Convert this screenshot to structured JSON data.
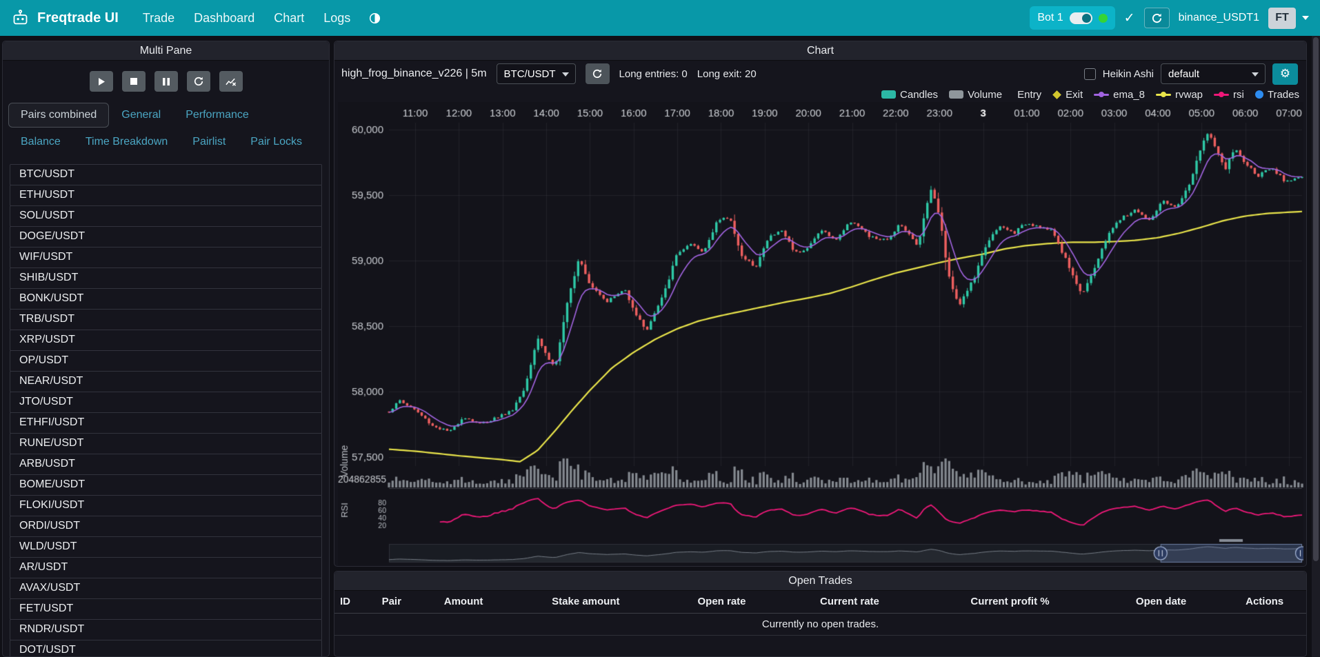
{
  "navbar": {
    "brand": "Freqtrade UI",
    "links": [
      "Trade",
      "Dashboard",
      "Chart",
      "Logs"
    ],
    "bot": {
      "name": "Bot 1",
      "online": true
    },
    "exchange_label": "binance_USDT1",
    "avatar_label": "FT"
  },
  "multi_pane": {
    "title": "Multi Pane",
    "tabs": [
      "Pairs combined",
      "General",
      "Performance",
      "Balance",
      "Time Breakdown",
      "Pairlist",
      "Pair Locks"
    ],
    "active_tab": "Pairs combined",
    "pairs": [
      "BTC/USDT",
      "ETH/USDT",
      "SOL/USDT",
      "DOGE/USDT",
      "WIF/USDT",
      "SHIB/USDT",
      "BONK/USDT",
      "TRB/USDT",
      "XRP/USDT",
      "OP/USDT",
      "NEAR/USDT",
      "JTO/USDT",
      "ETHFI/USDT",
      "RUNE/USDT",
      "ARB/USDT",
      "BOME/USDT",
      "FLOKI/USDT",
      "ORDI/USDT",
      "WLD/USDT",
      "AR/USDT",
      "AVAX/USDT",
      "FET/USDT",
      "RNDR/USDT",
      "DOT/USDT"
    ]
  },
  "chart_panel": {
    "title": "Chart",
    "strategy_label": "high_frog_binance_v226 | 5m",
    "pair_select": "BTC/USDT",
    "long_entries_label": "Long entries: 0",
    "long_exit_label": "Long exit: 20",
    "heikin_ashi_label": "Heikin Ashi",
    "plot_config_select": "default",
    "legend": [
      {
        "label": "Candles",
        "marker": "rect",
        "color": "#2cb8a5"
      },
      {
        "label": "Volume",
        "marker": "rect",
        "color": "#8f969b"
      },
      {
        "label": "Entry",
        "marker": "triangle",
        "color": "#18d06b"
      },
      {
        "label": "Exit",
        "marker": "diamond",
        "color": "#d2c62e"
      },
      {
        "label": "ema_8",
        "marker": "line",
        "color": "#a163e0"
      },
      {
        "label": "rvwap",
        "marker": "line",
        "color": "#e9e44a"
      },
      {
        "label": "rsi",
        "marker": "line",
        "color": "#ee1778"
      },
      {
        "label": "Trades",
        "marker": "circle",
        "color": "#2d8cf0"
      }
    ]
  },
  "chart_data": {
    "type": "candlestick",
    "pair": "BTC/USDT",
    "timeframe": "5m",
    "x_labels": [
      "11:00",
      "12:00",
      "13:00",
      "14:00",
      "15:00",
      "16:00",
      "17:00",
      "18:00",
      "19:00",
      "20:00",
      "21:00",
      "22:00",
      "23:00",
      "3",
      "01:00",
      "02:00",
      "03:00",
      "04:00",
      "05:00",
      "06:00",
      "07:00"
    ],
    "bold_label": "3",
    "y_ticks": [
      57500,
      58000,
      58500,
      59000,
      59500,
      60000
    ],
    "y_range": [
      57430,
      60060
    ],
    "volume_label": "Volume",
    "volume_axis_label": "204862855",
    "rsi_label": "RSI",
    "rsi_ticks": [
      80,
      60,
      40,
      20
    ],
    "close_anchors": [
      [
        -0.6,
        57850
      ],
      [
        -0.35,
        57930
      ],
      [
        0,
        57860
      ],
      [
        0.4,
        57740
      ],
      [
        0.8,
        57690
      ],
      [
        1.1,
        57810
      ],
      [
        1.5,
        57750
      ],
      [
        1.9,
        57810
      ],
      [
        2.2,
        57850
      ],
      [
        2.5,
        58020
      ],
      [
        2.8,
        58420
      ],
      [
        3.0,
        58280
      ],
      [
        3.2,
        58180
      ],
      [
        3.5,
        58700
      ],
      [
        3.75,
        59030
      ],
      [
        4.0,
        58820
      ],
      [
        4.4,
        58690
      ],
      [
        4.8,
        58780
      ],
      [
        5.1,
        58560
      ],
      [
        5.3,
        58470
      ],
      [
        5.7,
        58750
      ],
      [
        6.0,
        59060
      ],
      [
        6.3,
        59120
      ],
      [
        6.6,
        59060
      ],
      [
        6.9,
        59300
      ],
      [
        7.2,
        59330
      ],
      [
        7.5,
        59010
      ],
      [
        7.8,
        58960
      ],
      [
        8.1,
        59180
      ],
      [
        8.4,
        59230
      ],
      [
        8.7,
        59060
      ],
      [
        9.0,
        59100
      ],
      [
        9.3,
        59240
      ],
      [
        9.6,
        59150
      ],
      [
        10.0,
        59310
      ],
      [
        10.4,
        59180
      ],
      [
        10.8,
        59150
      ],
      [
        11.1,
        59290
      ],
      [
        11.5,
        59110
      ],
      [
        11.8,
        59560
      ],
      [
        12.0,
        59350
      ],
      [
        12.2,
        58890
      ],
      [
        12.45,
        58660
      ],
      [
        12.8,
        58870
      ],
      [
        13.1,
        59150
      ],
      [
        13.4,
        59260
      ],
      [
        13.7,
        59210
      ],
      [
        14.0,
        59290
      ],
      [
        14.3,
        59260
      ],
      [
        14.6,
        59220
      ],
      [
        15.0,
        58930
      ],
      [
        15.25,
        58740
      ],
      [
        15.6,
        58980
      ],
      [
        15.9,
        59230
      ],
      [
        16.2,
        59330
      ],
      [
        16.5,
        59390
      ],
      [
        16.8,
        59300
      ],
      [
        17.1,
        59450
      ],
      [
        17.4,
        59400
      ],
      [
        17.7,
        59560
      ],
      [
        18.0,
        59870
      ],
      [
        18.15,
        59990
      ],
      [
        18.35,
        59830
      ],
      [
        18.55,
        59700
      ],
      [
        18.75,
        59860
      ],
      [
        19.0,
        59740
      ],
      [
        19.3,
        59650
      ],
      [
        19.6,
        59700
      ],
      [
        19.9,
        59610
      ],
      [
        20.3,
        59640
      ]
    ],
    "rvwap_anchors": [
      [
        -0.6,
        57560
      ],
      [
        0,
        57545
      ],
      [
        1,
        57510
      ],
      [
        2,
        57480
      ],
      [
        2.4,
        57465
      ],
      [
        2.8,
        57550
      ],
      [
        3.2,
        57700
      ],
      [
        3.6,
        57860
      ],
      [
        4.0,
        58010
      ],
      [
        4.5,
        58180
      ],
      [
        5.0,
        58300
      ],
      [
        5.5,
        58400
      ],
      [
        6.0,
        58480
      ],
      [
        6.5,
        58540
      ],
      [
        7.0,
        58580
      ],
      [
        7.5,
        58615
      ],
      [
        8.0,
        58650
      ],
      [
        8.5,
        58685
      ],
      [
        9.0,
        58715
      ],
      [
        9.5,
        58750
      ],
      [
        10.0,
        58800
      ],
      [
        10.5,
        58855
      ],
      [
        11.0,
        58905
      ],
      [
        11.5,
        58945
      ],
      [
        12.0,
        58985
      ],
      [
        12.5,
        59020
      ],
      [
        13.0,
        59050
      ],
      [
        13.5,
        59090
      ],
      [
        14.0,
        59115
      ],
      [
        14.5,
        59130
      ],
      [
        15.0,
        59140
      ],
      [
        15.5,
        59140
      ],
      [
        16.0,
        59145
      ],
      [
        16.5,
        59155
      ],
      [
        17.0,
        59175
      ],
      [
        17.5,
        59210
      ],
      [
        18.0,
        59255
      ],
      [
        18.5,
        59305
      ],
      [
        19.0,
        59340
      ],
      [
        19.5,
        59360
      ],
      [
        20.3,
        59375
      ]
    ],
    "colors": {
      "up": "#2ec9a7",
      "down": "#ee5f5f",
      "ema": "#a163e0",
      "rvwap": "#e9e44a",
      "rsi": "#ee1778",
      "volume": "#9aa0a6",
      "grid": "rgba(255,255,255,0.055)",
      "axis_text": "#c6c9ce"
    },
    "navigator": {
      "selected_start_frac": 0.845,
      "selected_end_frac": 1.0
    }
  },
  "open_trades": {
    "title": "Open Trades",
    "columns": [
      "ID",
      "Pair",
      "Amount",
      "Stake amount",
      "Open rate",
      "Current rate",
      "Current profit %",
      "Open date",
      "Actions"
    ],
    "empty_message": "Currently no open trades."
  },
  "colors": {
    "navbar": "#0898a8",
    "bot_chip": "#0cb3c8",
    "online_dot": "#35d435",
    "tab_link": "#4ba6c3"
  }
}
